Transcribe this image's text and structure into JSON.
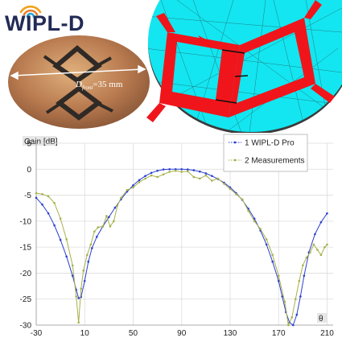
{
  "logo": {
    "text": "WIPL-D"
  },
  "photo": {
    "dim_label_main": "D",
    "dim_label_sub": "front",
    "dim_label_value": "=35 mm"
  },
  "chart_data": {
    "type": "line",
    "ylabel": "Gain [dB]",
    "xlabel": "θ",
    "xticks": [
      -30,
      10,
      50,
      90,
      130,
      170,
      210
    ],
    "yticks": [
      5,
      0,
      -5,
      -10,
      -15,
      -20,
      -25,
      -30
    ],
    "xlim": [
      -30,
      215
    ],
    "ylim": [
      -30,
      5
    ],
    "grid": true,
    "legend_position": "top-right",
    "series": [
      {
        "name": "1 WIPL-D Pro",
        "color": "#2b3fd1",
        "x": [
          -30,
          -25,
          -20,
          -15,
          -10,
          -5,
          0,
          3,
          5,
          7,
          10,
          13,
          16,
          20,
          25,
          30,
          35,
          40,
          45,
          50,
          55,
          60,
          65,
          70,
          75,
          80,
          85,
          90,
          95,
          100,
          105,
          110,
          115,
          120,
          125,
          130,
          135,
          140,
          145,
          150,
          155,
          160,
          165,
          170,
          173,
          176,
          179,
          182,
          185,
          188,
          191,
          195,
          200,
          205,
          210
        ],
        "y": [
          -5.5,
          -6.8,
          -8.5,
          -10.8,
          -13.6,
          -16.8,
          -20.5,
          -23.2,
          -24.8,
          -24.6,
          -21.5,
          -17.8,
          -15.2,
          -13.0,
          -11.0,
          -9.2,
          -7.4,
          -5.8,
          -4.3,
          -3.1,
          -2.1,
          -1.3,
          -0.7,
          -0.3,
          -0.05,
          0,
          0,
          0,
          -0.05,
          -0.2,
          -0.45,
          -0.8,
          -1.3,
          -1.9,
          -2.6,
          -3.5,
          -4.6,
          -5.9,
          -7.6,
          -9.5,
          -11.8,
          -14.5,
          -17.8,
          -21.5,
          -24.5,
          -27.5,
          -29.5,
          -30,
          -28.0,
          -24.5,
          -20.5,
          -16.0,
          -12.5,
          -10.2,
          -8.5
        ]
      },
      {
        "name": "2 Measurements",
        "color": "#a7b04a",
        "x": [
          -30,
          -25,
          -20,
          -15,
          -10,
          -5,
          0,
          3,
          5,
          7,
          9,
          12,
          15,
          18,
          21,
          25,
          28,
          31,
          34,
          37,
          40,
          45,
          50,
          55,
          60,
          65,
          70,
          75,
          80,
          85,
          90,
          95,
          100,
          105,
          110,
          115,
          120,
          125,
          130,
          135,
          140,
          145,
          150,
          155,
          160,
          165,
          170,
          175,
          178,
          181,
          184,
          187,
          190,
          193,
          196,
          199,
          202,
          205,
          208,
          210
        ],
        "y": [
          -4.6,
          -4.8,
          -5.2,
          -6.5,
          -9.5,
          -13.5,
          -18.5,
          -24.5,
          -29.5,
          -23.0,
          -19.5,
          -16.5,
          -14.5,
          -12.0,
          -11.2,
          -11.0,
          -9.0,
          -11.0,
          -10.0,
          -7.0,
          -5.5,
          -4.0,
          -3.5,
          -2.5,
          -1.8,
          -1.2,
          -1.5,
          -1.0,
          -0.5,
          -0.3,
          -0.5,
          -0.4,
          -1.5,
          -1.8,
          -1.2,
          -2.2,
          -1.8,
          -2.8,
          -3.8,
          -4.8,
          -5.8,
          -8.0,
          -10.0,
          -11.5,
          -13.5,
          -16.5,
          -20.5,
          -25.5,
          -30,
          -28.5,
          -25.0,
          -21.5,
          -18.5,
          -17.0,
          -16.0,
          -14.5,
          -15.5,
          -16.5,
          -15.0,
          -14.5
        ]
      }
    ]
  }
}
